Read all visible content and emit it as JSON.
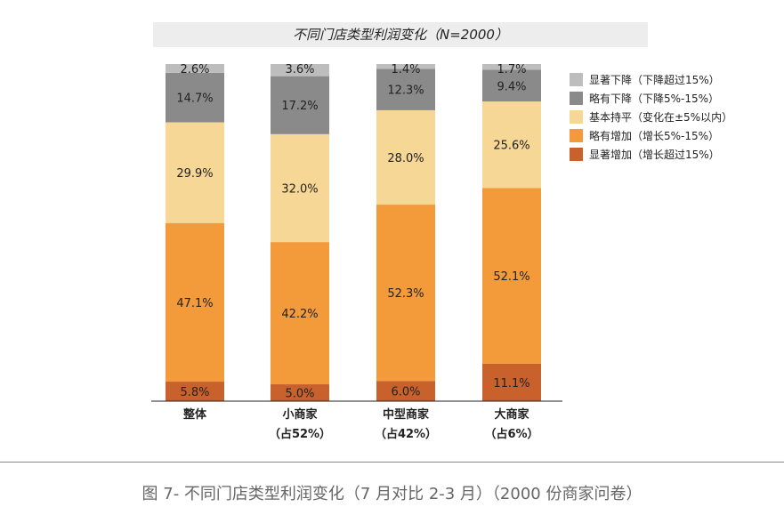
{
  "chart_data": {
    "type": "bar",
    "stacked": true,
    "percent": true,
    "title": "不同门店类型利润变化（N=2000）",
    "categories": [
      {
        "line1": "整体",
        "line2": ""
      },
      {
        "line1": "小商家",
        "line2": "（占52%）"
      },
      {
        "line1": "中型商家",
        "line2": "（占42%）"
      },
      {
        "line1": "大商家",
        "line2": "（占6%）"
      }
    ],
    "series": [
      {
        "name": "显著增加（增长超过15%）",
        "color": "#c8612c",
        "values": [
          5.8,
          5.0,
          6.0,
          11.1
        ]
      },
      {
        "name": "略有增加（增长5%-15%）",
        "color": "#f39a3a",
        "values": [
          47.1,
          42.2,
          52.3,
          52.1
        ]
      },
      {
        "name": "基本持平（变化在±5%以内）",
        "color": "#f6d796",
        "values": [
          29.9,
          32.0,
          28.0,
          25.6
        ]
      },
      {
        "name": "略有下降（下降5%-15%）",
        "color": "#8a8a8a",
        "values": [
          14.7,
          17.2,
          12.3,
          9.4
        ]
      },
      {
        "name": "显著下降（下降超过15%）",
        "color": "#bdbdbd",
        "values": [
          2.6,
          3.6,
          1.4,
          1.7
        ]
      }
    ],
    "legend_order": [
      4,
      3,
      2,
      1,
      0
    ],
    "legend_position": "right"
  },
  "caption": "图 7- 不同门店类型利润变化（7 月对比 2-3 月）（2000 份商家问卷）"
}
